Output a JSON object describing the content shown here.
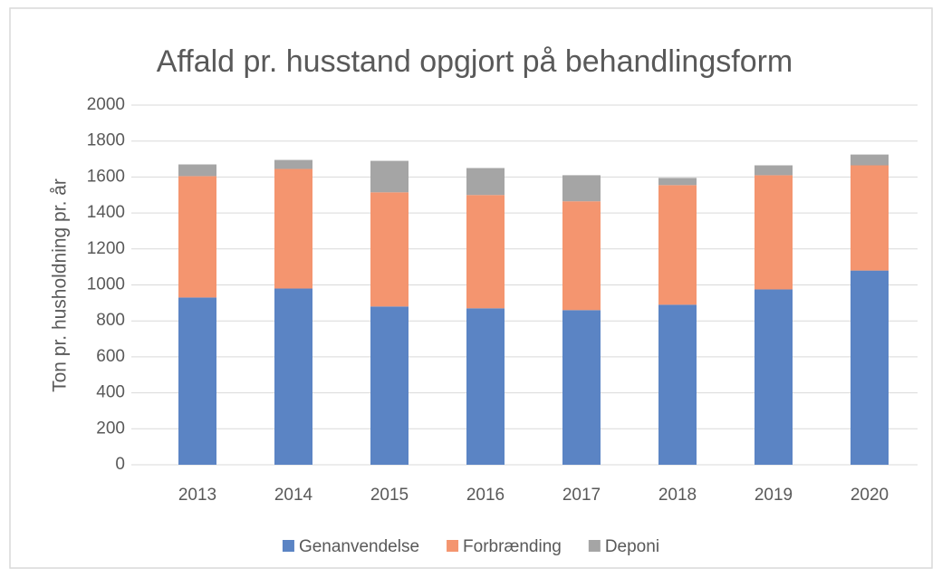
{
  "chart_data": {
    "type": "stacked_bar",
    "title": "Affald pr. husstand opgjort på behandlingsform",
    "y_label": "Ton pr. husholdning pr. år",
    "categories": [
      "2013",
      "2014",
      "2015",
      "2016",
      "2017",
      "2018",
      "2019",
      "2020"
    ],
    "series": [
      {
        "name": "Genanvendelse",
        "color": "#5b84c4",
        "values": [
          930,
          980,
          880,
          870,
          860,
          890,
          975,
          1080
        ]
      },
      {
        "name": "Forbrænding",
        "color": "#f4956f",
        "values": [
          675,
          665,
          635,
          630,
          605,
          665,
          635,
          585
        ]
      },
      {
        "name": "Deponi",
        "color": "#a5a5a5",
        "values": [
          65,
          50,
          175,
          150,
          145,
          40,
          55,
          60
        ]
      }
    ],
    "ylim": [
      0,
      2000
    ],
    "yticks": [
      0,
      200,
      400,
      600,
      800,
      1000,
      1200,
      1400,
      1600,
      1800,
      2000
    ],
    "grid": true,
    "legend": "bottom"
  }
}
